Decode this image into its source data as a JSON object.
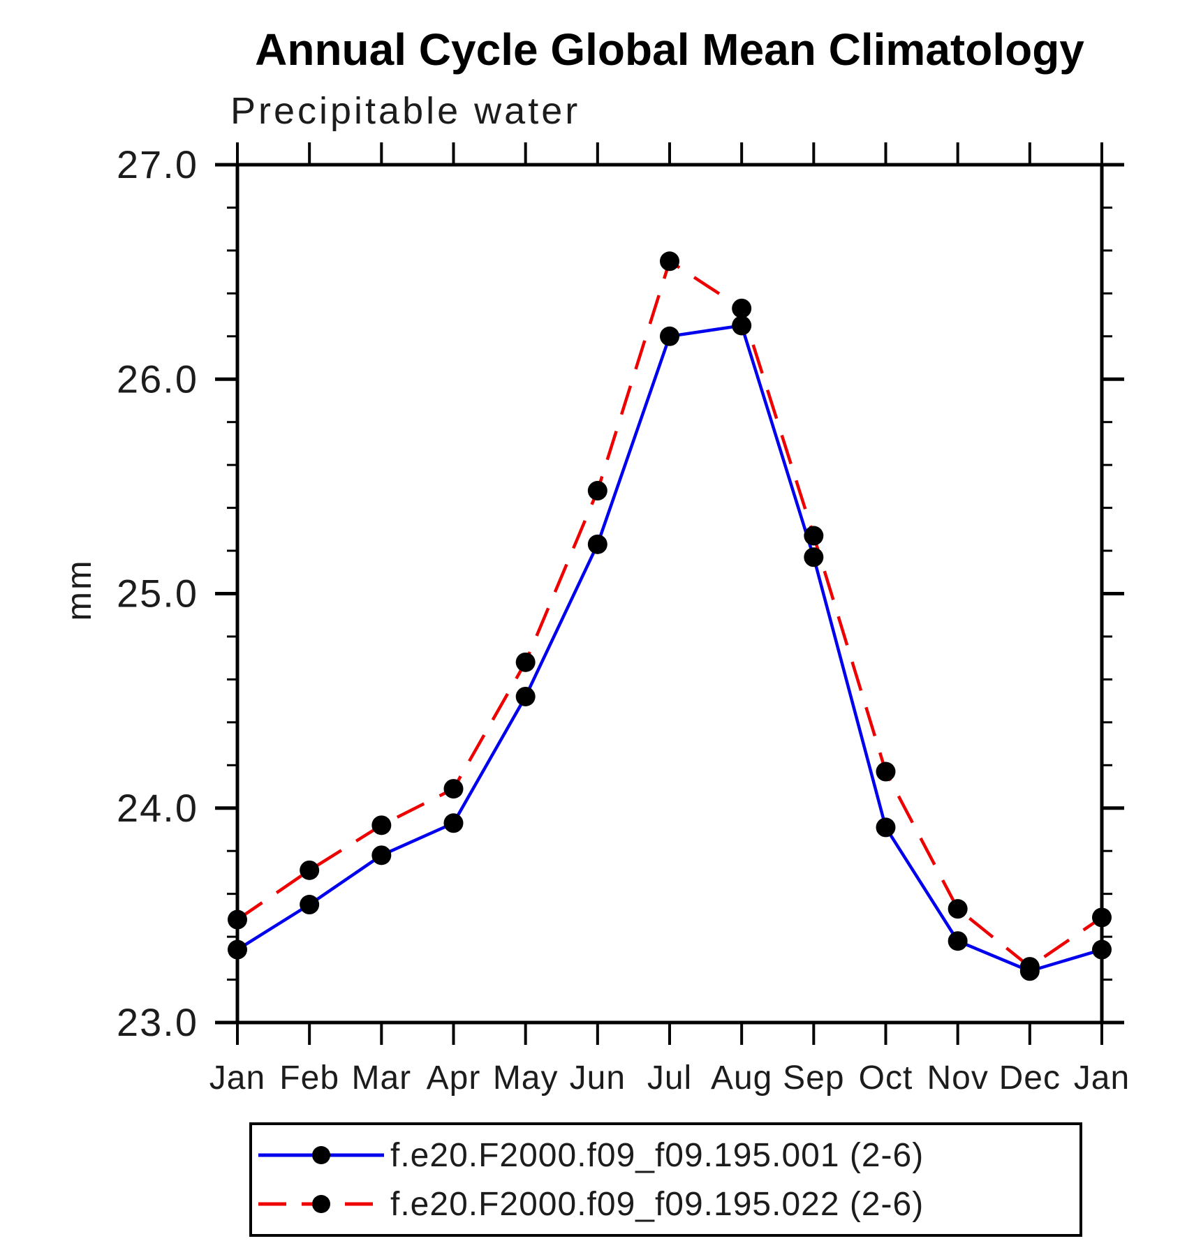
{
  "title": "Annual Cycle Global Mean Climatology",
  "subtitle": "Precipitable water",
  "y_axis_label": "mm",
  "chart_data": {
    "type": "line",
    "title": "Annual Cycle Global Mean Climatology",
    "subtitle": "Precipitable water",
    "xlabel": "",
    "ylabel": "mm",
    "categories": [
      "Jan",
      "Feb",
      "Mar",
      "Apr",
      "May",
      "Jun",
      "Jul",
      "Aug",
      "Sep",
      "Oct",
      "Nov",
      "Dec",
      "Jan"
    ],
    "series": [
      {
        "name": "f.e20.F2000.f09_f09.195.001 (2-6)",
        "line_color": "#0000ee",
        "line_style": "solid",
        "marker": "filled-circle",
        "marker_color": "#000000",
        "values": [
          23.34,
          23.55,
          23.78,
          23.93,
          24.52,
          25.23,
          26.2,
          26.25,
          25.17,
          23.91,
          23.38,
          23.24,
          23.34
        ]
      },
      {
        "name": "f.e20.F2000.f09_f09.195.022 (2-6)",
        "line_color": "#ee0000",
        "line_style": "dashed",
        "marker": "filled-circle",
        "marker_color": "#000000",
        "values": [
          23.48,
          23.71,
          23.92,
          24.09,
          24.68,
          25.48,
          26.55,
          26.33,
          25.27,
          24.17,
          23.53,
          23.26,
          23.49
        ]
      }
    ],
    "ylim": [
      23.0,
      27.0
    ],
    "yticks": [
      23.0,
      24.0,
      25.0,
      26.0,
      27.0
    ],
    "ytick_labels": [
      "23.0",
      "24.0",
      "25.0",
      "26.0",
      "27.0"
    ],
    "y_minor_tick_step": 0.2,
    "grid": false,
    "legend_position": "bottom-center-box",
    "axis_color": "#000000",
    "background_color": "#ffffff"
  }
}
